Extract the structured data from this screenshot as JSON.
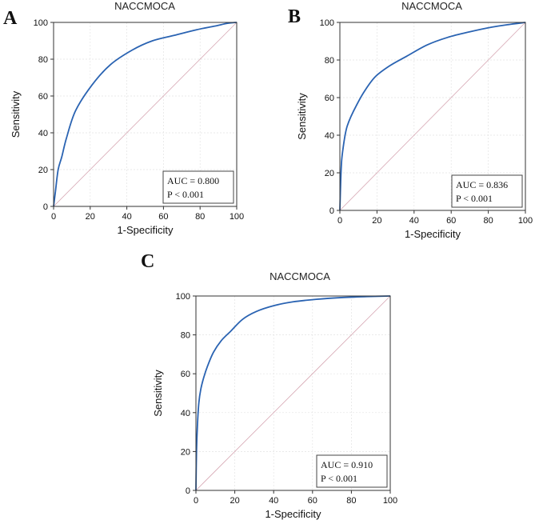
{
  "chart_data": [
    {
      "panel": "A",
      "type": "line",
      "title": "NACCMOCA",
      "xlabel": "1-Specificity",
      "ylabel": "Sensitivity",
      "xlim": [
        0,
        100
      ],
      "ylim": [
        0,
        100
      ],
      "xticks": [
        "0",
        "20",
        "40",
        "60",
        "80",
        "100"
      ],
      "yticks": [
        "0",
        "20",
        "40",
        "60",
        "80",
        "100"
      ],
      "grid": true,
      "series": [
        {
          "name": "ROC curve",
          "x": [
            0,
            1,
            2.5,
            4.5,
            7,
            12,
            21,
            31,
            43,
            54,
            66,
            78,
            88,
            95,
            100
          ],
          "y": [
            0,
            8,
            20,
            27,
            37,
            52,
            66,
            77,
            85,
            90,
            93,
            96,
            98,
            99.5,
            100
          ]
        },
        {
          "name": "Reference line",
          "x": [
            0,
            100
          ],
          "y": [
            0,
            100
          ]
        }
      ],
      "annotation": {
        "auc": "AUC = 0.800",
        "p": "P < 0.001",
        "position": "bottom-right"
      }
    },
    {
      "panel": "B",
      "type": "line",
      "title": "NACCMOCA",
      "xlabel": "1-Specificity",
      "ylabel": "Sensitivity",
      "xlim": [
        0,
        100
      ],
      "ylim": [
        0,
        100
      ],
      "xticks": [
        "0",
        "20",
        "40",
        "60",
        "80",
        "100"
      ],
      "yticks": [
        "0",
        "20",
        "40",
        "60",
        "80",
        "100"
      ],
      "grid": true,
      "series": [
        {
          "name": "ROC curve",
          "x": [
            0,
            0.5,
            1,
            2,
            3,
            4,
            6,
            9,
            13,
            19,
            27,
            36,
            47,
            58,
            70,
            82,
            92,
            100
          ],
          "y": [
            0,
            17,
            27,
            35,
            41,
            45,
            50,
            56,
            63,
            71,
            77,
            82,
            88,
            92,
            95,
            97.5,
            99,
            100
          ]
        },
        {
          "name": "Reference line",
          "x": [
            0,
            100
          ],
          "y": [
            0,
            100
          ]
        }
      ],
      "annotation": {
        "auc": "AUC = 0.836",
        "p": "P < 0.001",
        "position": "bottom-right"
      }
    },
    {
      "panel": "C",
      "type": "line",
      "title": "NACCMOCA",
      "xlabel": "1-Specificity",
      "ylabel": "Sensitivity",
      "xlim": [
        0,
        100
      ],
      "ylim": [
        0,
        100
      ],
      "xticks": [
        "0",
        "20",
        "40",
        "60",
        "80",
        "100"
      ],
      "yticks": [
        "0",
        "20",
        "40",
        "60",
        "80",
        "100"
      ],
      "grid": true,
      "series": [
        {
          "name": "ROC curve",
          "x": [
            0,
            0.3,
            0.8,
            1.5,
            2.5,
            4,
            6,
            9,
            13,
            18,
            24,
            31,
            40,
            50,
            62,
            75,
            88,
            100
          ],
          "y": [
            0,
            20,
            34,
            45,
            52,
            58,
            64,
            71,
            77,
            82,
            88,
            92,
            95,
            97,
            98.3,
            99.2,
            99.7,
            100
          ]
        },
        {
          "name": "Reference line",
          "x": [
            0,
            100
          ],
          "y": [
            0,
            100
          ]
        }
      ],
      "annotation": {
        "auc": "AUC = 0.910",
        "p": "P < 0.001",
        "position": "bottom-right"
      }
    }
  ],
  "colors": {
    "curve": "#2a63b2",
    "reference": "#d7a8b4"
  }
}
